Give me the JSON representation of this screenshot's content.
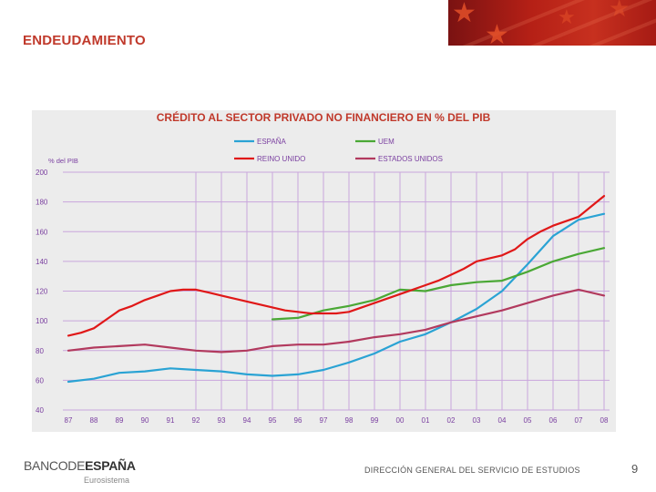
{
  "slide": {
    "title": "ENDEUDAMIENTO",
    "footer_logo_light": "BANCODE",
    "footer_logo_bold": "ESPAÑA",
    "footer_sub": "Eurosistema",
    "footer_dept": "DIRECCIÓN GENERAL DEL SERVICIO DE ESTUDIOS",
    "page_number": "9"
  },
  "colors": {
    "accent": "#c0392b",
    "espana": "#2aa3d4",
    "uem": "#4aa835",
    "reino_unido": "#e01818",
    "estados_unidos": "#b23a5e",
    "gridline": "#c9a6dc"
  },
  "chart_data": {
    "type": "line",
    "title": "CRÉDITO AL SECTOR PRIVADO NO FINANCIERO EN % DEL PIB",
    "ylabel": "% del PIB",
    "xlabel": "",
    "ylim": [
      40,
      200
    ],
    "yticks": [
      "40",
      "60",
      "80",
      "100",
      "120",
      "140",
      "160",
      "180",
      "200"
    ],
    "categories": [
      "87",
      "88",
      "89",
      "90",
      "91",
      "92",
      "93",
      "94",
      "95",
      "96",
      "97",
      "98",
      "99",
      "00",
      "01",
      "02",
      "03",
      "04",
      "05",
      "06",
      "07",
      "08"
    ],
    "grid": true,
    "legend_position": "top",
    "series": [
      {
        "name": "ESPAÑA",
        "color_key": "espana",
        "x": [
          0,
          1,
          2,
          3,
          4,
          5,
          6,
          7,
          8,
          9,
          10,
          11,
          12,
          13,
          14,
          15,
          16,
          17,
          18,
          19,
          20,
          21
        ],
        "values": [
          59,
          61,
          65,
          66,
          68,
          67,
          66,
          64,
          63,
          64,
          67,
          72,
          78,
          86,
          91,
          99,
          108,
          120,
          138,
          157,
          168,
          172
        ]
      },
      {
        "name": "UEM",
        "color_key": "uem",
        "x": [
          8,
          9,
          10,
          11,
          12,
          13,
          14,
          15,
          16,
          17,
          18,
          19,
          20,
          21
        ],
        "values": [
          101,
          102,
          107,
          110,
          114,
          121,
          120,
          124,
          126,
          127,
          133,
          140,
          145,
          149
        ]
      },
      {
        "name": "REINO UNIDO",
        "color_key": "reino_unido",
        "x": [
          0,
          0.5,
          1,
          1.5,
          2,
          2.5,
          3,
          3.5,
          4,
          4.5,
          5,
          5.5,
          6,
          6.5,
          7,
          7.5,
          8,
          8.5,
          9,
          9.5,
          10,
          10.5,
          11,
          11.5,
          12,
          12.5,
          13,
          13.5,
          14,
          14.5,
          15,
          15.5,
          16,
          16.5,
          17,
          17.5,
          18,
          18.5,
          19,
          19.5,
          20,
          20.5,
          21
        ],
        "values": [
          90,
          92,
          95,
          101,
          107,
          110,
          114,
          117,
          120,
          121,
          121,
          119,
          117,
          115,
          113,
          111,
          109,
          107,
          106,
          105,
          105,
          105,
          106,
          109,
          112,
          115,
          118,
          121,
          124,
          127,
          131,
          135,
          140,
          142,
          144,
          148,
          155,
          160,
          164,
          167,
          170,
          177,
          184
        ]
      },
      {
        "name": "ESTADOS UNIDOS",
        "color_key": "estados_unidos",
        "x": [
          0,
          1,
          2,
          3,
          4,
          5,
          6,
          7,
          8,
          9,
          10,
          11,
          12,
          13,
          14,
          15,
          16,
          17,
          18,
          19,
          20,
          21
        ],
        "values": [
          80,
          82,
          83,
          84,
          82,
          80,
          79,
          80,
          83,
          84,
          84,
          86,
          89,
          91,
          94,
          99,
          103,
          107,
          112,
          117,
          121,
          117
        ]
      }
    ]
  }
}
